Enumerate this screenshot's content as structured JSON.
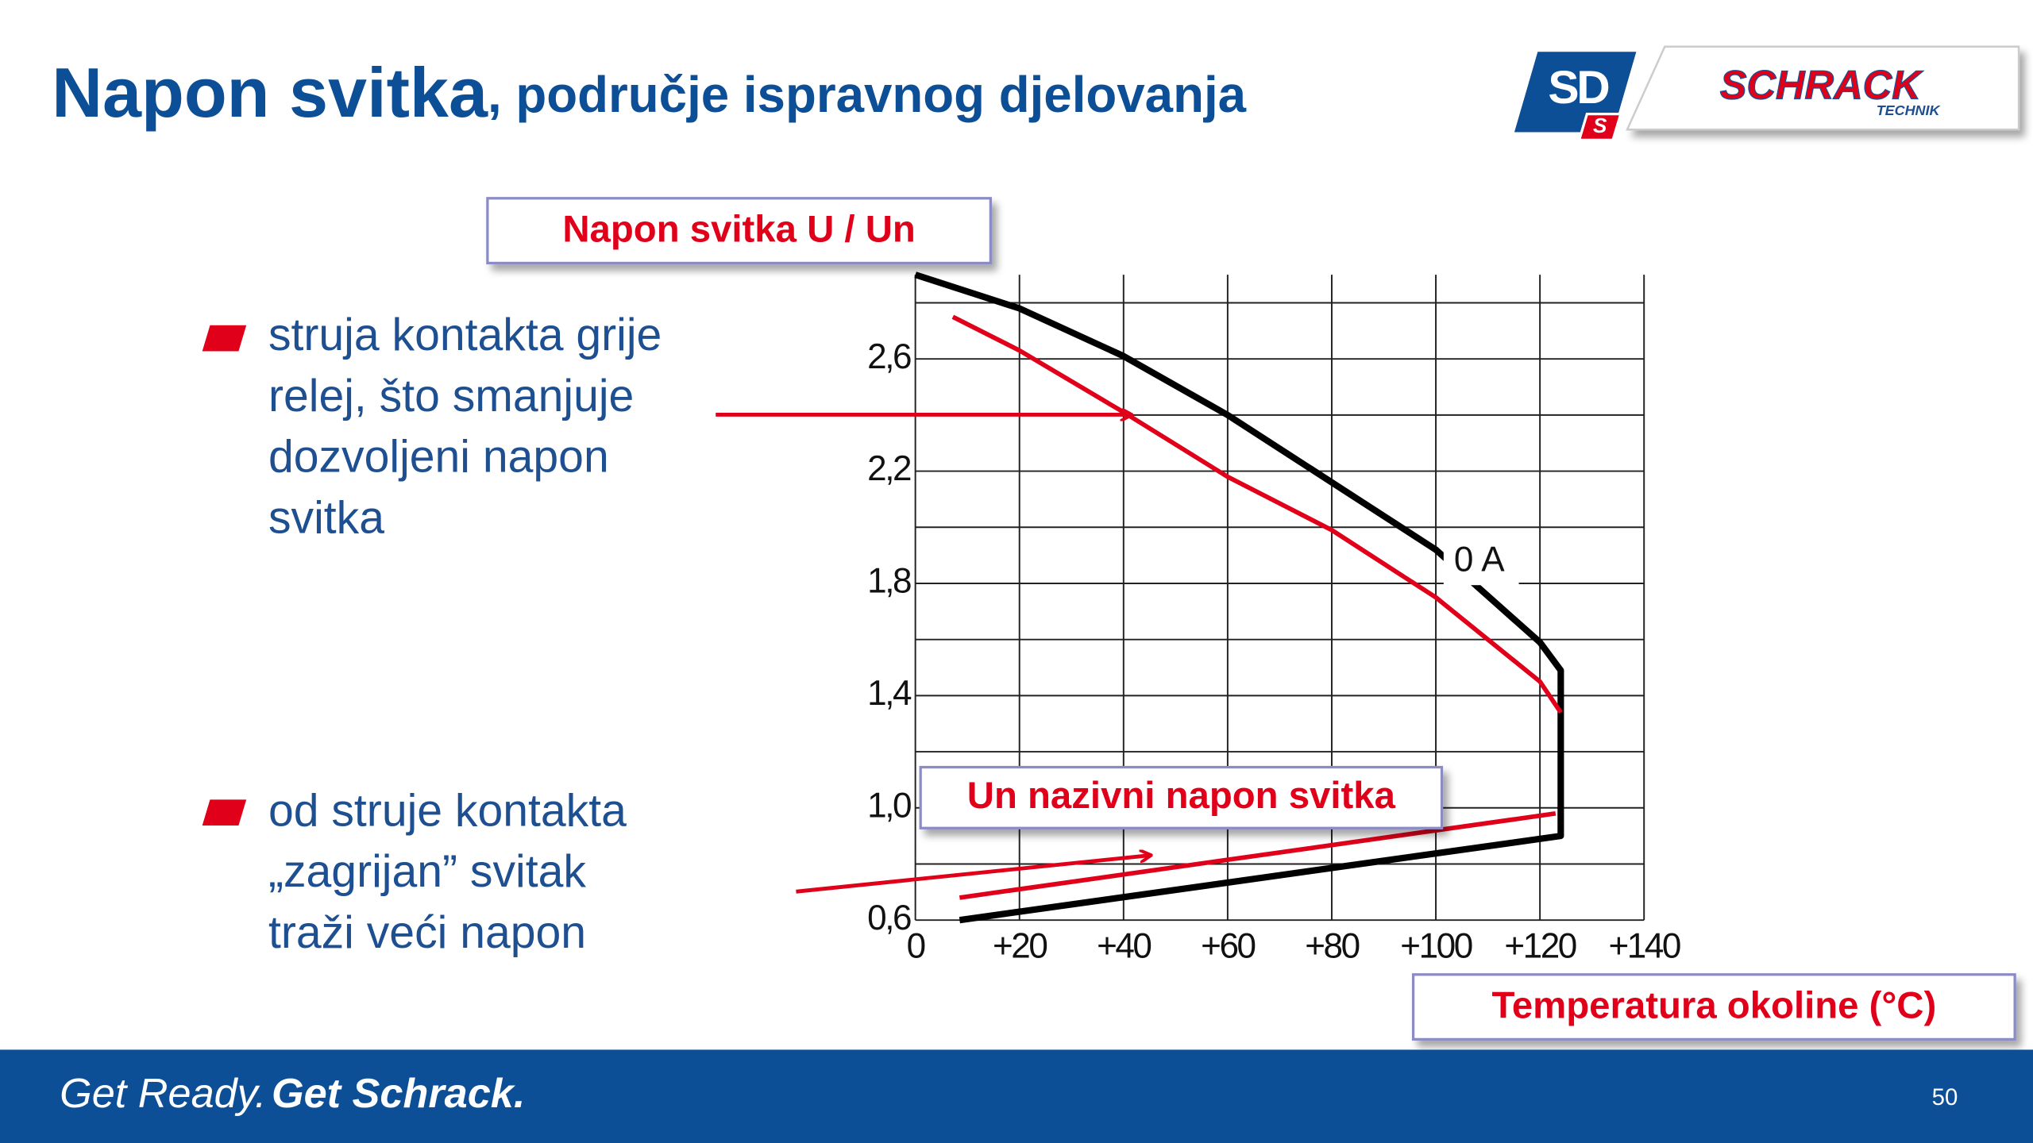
{
  "header": {
    "title_main": "Napon svitka",
    "title_rest": ", područje ispravnog djelovanja",
    "logo": {
      "badge": "SD",
      "badge_small": "S",
      "brand": "SCHRACK",
      "brand_sub": "TECHNIK"
    }
  },
  "bullets": [
    {
      "lines": [
        "struja kontakta  grije",
        "relej, što smanjuje",
        "dozvoljeni napon",
        "svitka"
      ]
    },
    {
      "lines": [
        "od struje kontakta",
        "„zagrijan” svitak",
        "traži veći napon"
      ]
    }
  ],
  "chart_data": {
    "type": "line",
    "y_label": "Napon svitka U / Un",
    "x_label": "Temperatura okoline (°C)",
    "annotation": "Un nazivni napon svitka",
    "xlim": [
      0,
      140
    ],
    "ylim": [
      0.6,
      2.9
    ],
    "xticks": [
      0,
      {
        "value": 20,
        "label": "+20"
      },
      {
        "value": 40,
        "label": "+40"
      },
      {
        "value": 60,
        "label": "+60"
      },
      {
        "value": 80,
        "label": "+80"
      },
      {
        "value": 100,
        "label": "+100"
      },
      {
        "value": 120,
        "label": "+120"
      },
      {
        "value": 140,
        "label": "+140"
      }
    ],
    "yticks": [
      {
        "value": 0.6,
        "label": "0,6"
      },
      {
        "value": 1.0,
        "label": "1,0"
      },
      {
        "value": 1.4,
        "label": "1,4"
      },
      {
        "value": 1.8,
        "label": "1,8"
      },
      {
        "value": 2.2,
        "label": "2,2"
      },
      {
        "value": 2.6,
        "label": "2,6"
      }
    ],
    "ygrid": [
      0.6,
      0.8,
      1.0,
      1.2,
      1.4,
      1.6,
      1.8,
      2.0,
      2.2,
      2.4,
      2.6,
      2.8
    ],
    "grid": true,
    "series": [
      {
        "name": "0 A",
        "color": "#000000",
        "x": [
          0,
          20,
          40,
          60,
          80,
          100,
          120,
          124,
          124,
          8.5
        ],
        "values": [
          2.9,
          2.78,
          2.61,
          2.4,
          2.16,
          1.92,
          1.59,
          1.49,
          0.9,
          0.6
        ]
      },
      {
        "color": "#e0001a",
        "x": [
          7.2,
          20,
          40,
          60,
          80,
          100,
          120,
          124
        ],
        "values": [
          2.75,
          2.63,
          2.41,
          2.18,
          1.99,
          1.75,
          1.45,
          1.34
        ]
      },
      {
        "color": "#e0001a",
        "x": [
          8.5,
          123
        ],
        "values": [
          0.68,
          0.98
        ]
      }
    ]
  },
  "footer": {
    "slogan_1": "Get Ready.",
    "slogan_2": "Get Schrack.",
    "page": "50"
  }
}
